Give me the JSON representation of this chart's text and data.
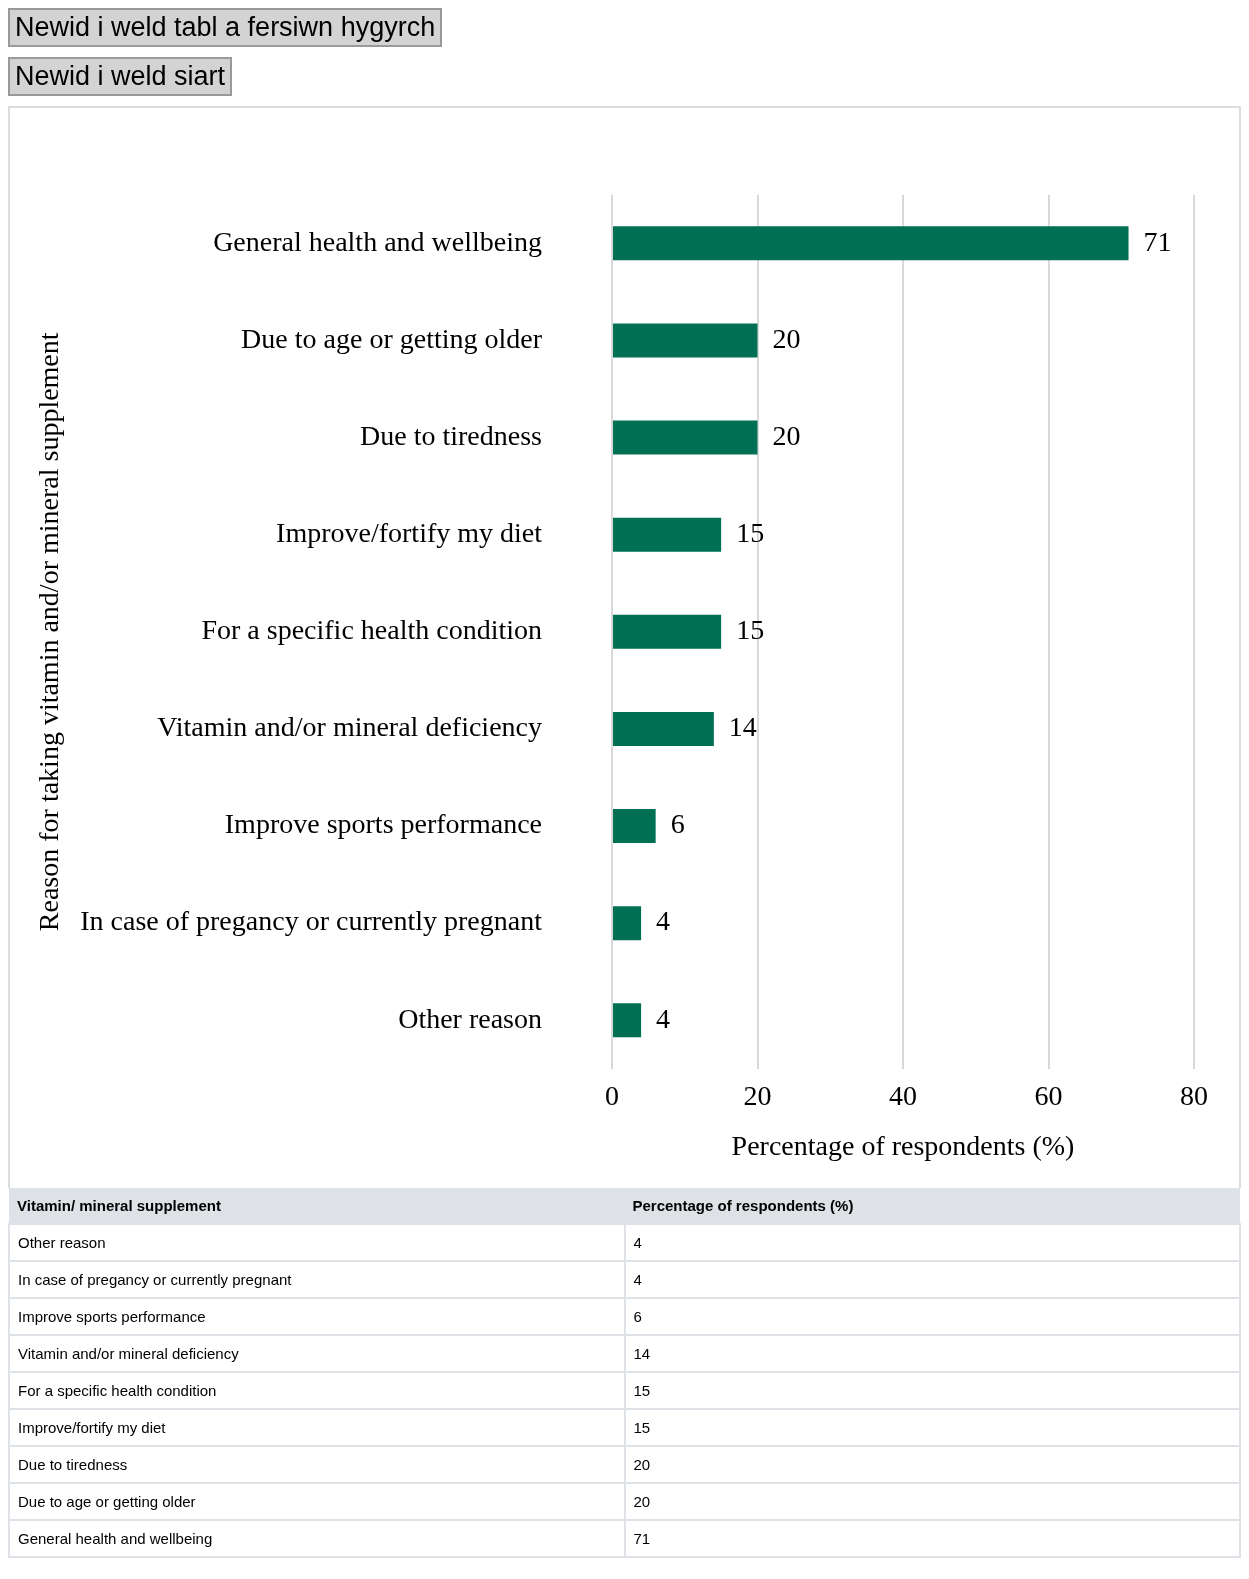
{
  "chart_data": [
    {
      "type": "bar",
      "orientation": "horizontal",
      "categories": [
        "General health and wellbeing",
        "Due to age or getting older",
        "Due to tiredness",
        "Improve/fortify my diet",
        "For a specific health condition",
        "Vitamin and/or mineral deficiency",
        "Improve sports performance",
        "In case of pregancy or currently pregnant",
        "Other reason"
      ],
      "values": [
        71,
        20,
        20,
        15,
        15,
        14,
        6,
        4,
        4
      ],
      "color": "#007054",
      "xlabel": "Percentage of respondents (%)",
      "ylabel": "Reason for taking vitamin and/or mineral supplement",
      "xlim": [
        0,
        80
      ],
      "xticks": [
        0,
        20,
        40,
        60,
        80
      ],
      "grid": "x",
      "legend": false,
      "data_labels": true,
      "annotations": [
        "Newid i weld tabl a fersiwn hygyrch",
        "Newid i weld siart"
      ]
    },
    {
      "type": "other",
      "categories": [
        "Other reason",
        "In case of pregancy or currently pregnant",
        "Improve sports performance",
        "Vitamin and/or mineral deficiency",
        "For a specific health condition",
        "Improve/fortify my diet",
        "Due to tiredness",
        "Due to age or getting older",
        "General health and wellbeing"
      ],
      "values": [
        4,
        4,
        6,
        14,
        15,
        15,
        20,
        20,
        71
      ],
      "data_labels": true,
      "annotations": [
        "Vitamin/ mineral supplement",
        "Percentage of respondents (%)"
      ]
    }
  ]
}
